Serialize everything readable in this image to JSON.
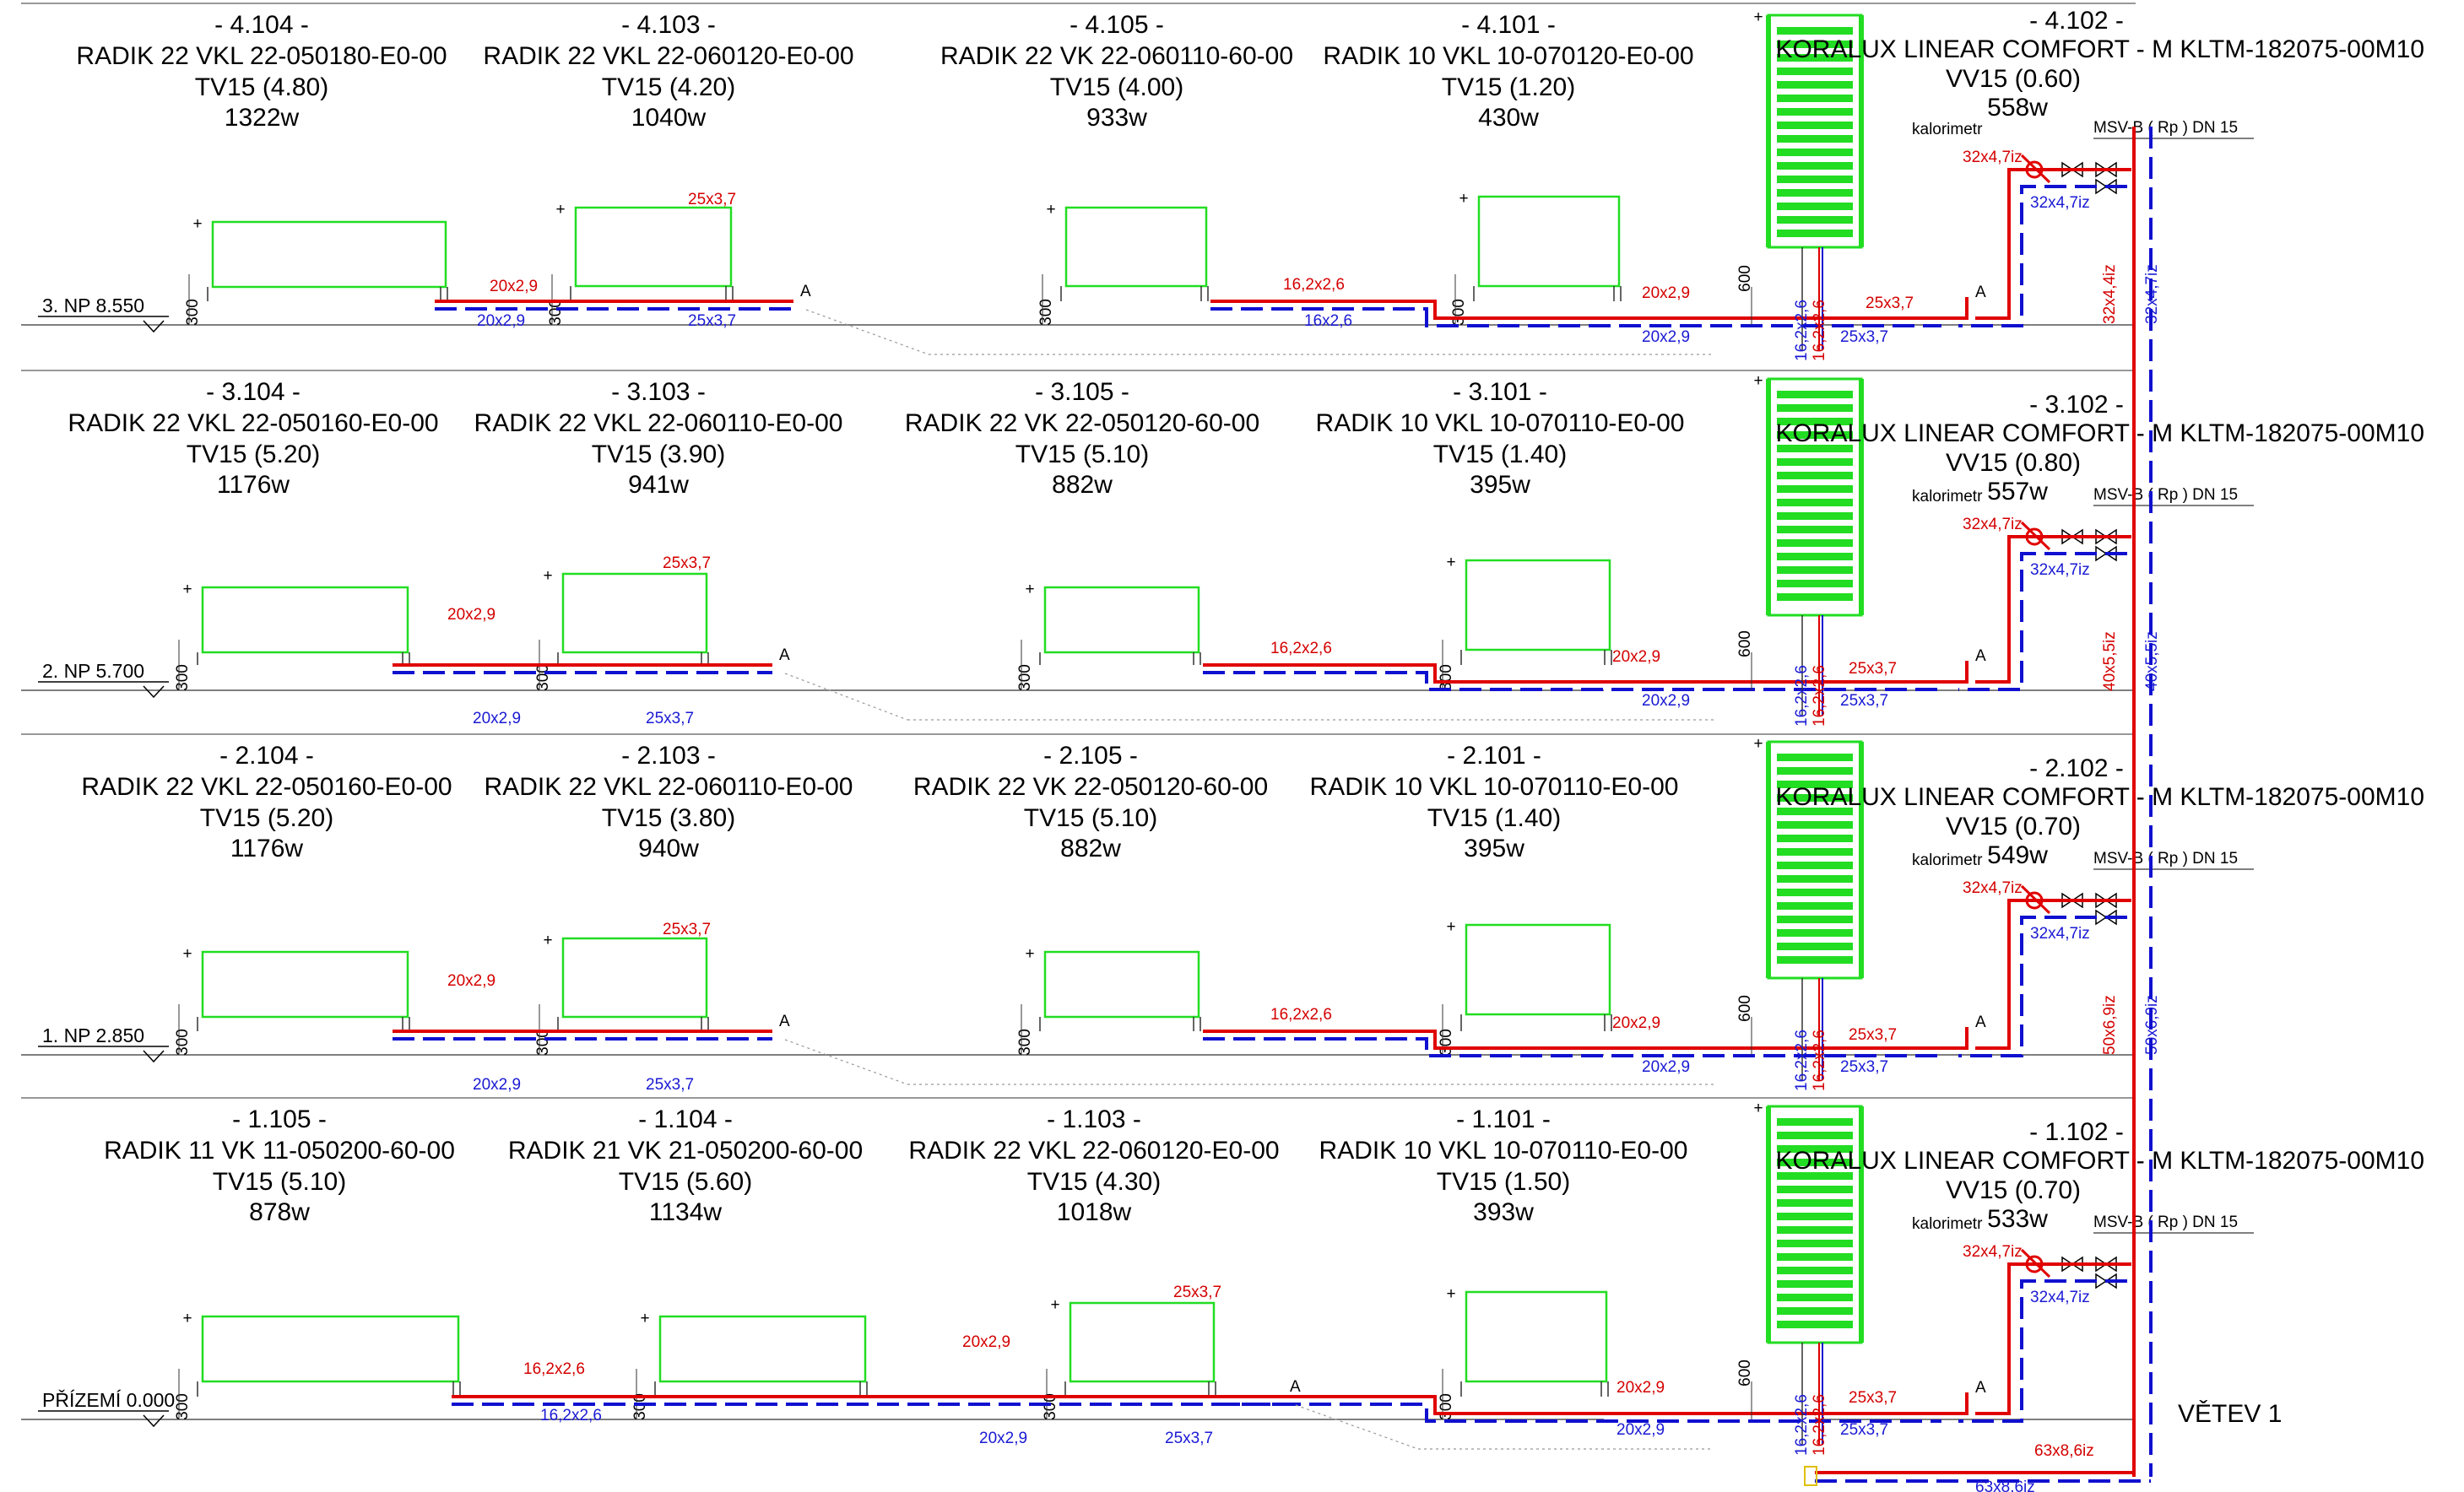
{
  "colors": {
    "supply": "#e00000",
    "return": "#1010d0",
    "radiator": "#22dd22",
    "background": "#ffffff"
  },
  "branch_label": "VĚTEV 1",
  "labels": {
    "calorimeter": "kalorimetr",
    "valve": "MSV-B ( Rp ) DN 15",
    "end_mark": "A",
    "h300": "300",
    "h600": "600"
  },
  "bottom_pipes": {
    "supply": "63x8,6iz",
    "return": "63x8,6iz"
  },
  "floors": [
    {
      "level": "3. NP 8.550",
      "riser_supply": "32x4,4iz",
      "riser_return": "32x4,7iz",
      "bath": {
        "code": "- 4.102 -",
        "model": "KORALUX LINEAR COMFORT - M KLTM-182075-00M10",
        "valve": "VV15 (0.60)",
        "power": "558w",
        "pipe_supply": "32x4,7iz",
        "pipe_return": "32x4,7iz"
      },
      "riser_small_a": "16,2x2,6",
      "riser_small_b": "16,2x2,6",
      "rooms": [
        {
          "code": "- 4.104 -",
          "model": "RADIK 22 VKL 22-050180-E0-00",
          "valve": "TV15 (4.80)",
          "power": "1322w"
        },
        {
          "code": "- 4.103 -",
          "model": "RADIK 22 VKL 22-060120-E0-00",
          "valve": "TV15 (4.20)",
          "power": "1040w"
        },
        {
          "code": "- 4.105 -",
          "model": "RADIK 22 VK 22-060110-60-00",
          "valve": "TV15 (4.00)",
          "power": "933w"
        },
        {
          "code": "- 4.101 -",
          "model": "RADIK 10 VKL 10-070120-E0-00",
          "valve": "TV15 (1.20)",
          "power": "430w"
        }
      ],
      "pipes": [
        {
          "label": "20x2,9",
          "color": "red"
        },
        {
          "label": "20x2,9",
          "color": "blue"
        },
        {
          "label": "25x3,7",
          "color": "red"
        },
        {
          "label": "25x3,7",
          "color": "blue"
        },
        {
          "label": "16,2x2,6",
          "color": "red"
        },
        {
          "label": "16x2,6",
          "color": "blue"
        },
        {
          "label": "20x2,9",
          "color": "red"
        },
        {
          "label": "20x2,9",
          "color": "blue"
        },
        {
          "label": "25x3,7",
          "color": "red"
        },
        {
          "label": "25x3,7",
          "color": "blue"
        }
      ]
    },
    {
      "level": "2. NP 5.700",
      "riser_supply": "40x5,5iz",
      "riser_return": "40x5,5iz",
      "bath": {
        "code": "- 3.102 -",
        "model": "KORALUX LINEAR COMFORT - M KLTM-182075-00M10",
        "valve": "VV15 (0.80)",
        "power": "557w",
        "pipe_supply": "32x4,7iz",
        "pipe_return": "32x4,7iz"
      },
      "riser_small_a": "16,2x2,6",
      "riser_small_b": "16,2x2,6",
      "rooms": [
        {
          "code": "- 3.104 -",
          "model": "RADIK 22 VKL 22-050160-E0-00",
          "valve": "TV15 (5.20)",
          "power": "1176w"
        },
        {
          "code": "- 3.103 -",
          "model": "RADIK 22 VKL 22-060110-E0-00",
          "valve": "TV15 (3.90)",
          "power": "941w"
        },
        {
          "code": "- 3.105 -",
          "model": "RADIK 22 VK 22-050120-60-00",
          "valve": "TV15 (5.10)",
          "power": "882w"
        },
        {
          "code": "- 3.101 -",
          "model": "RADIK 10 VKL 10-070110-E0-00",
          "valve": "TV15 (1.40)",
          "power": "395w"
        }
      ],
      "pipes": [
        {
          "label": "20x2,9",
          "color": "red"
        },
        {
          "label": "20x2,9",
          "color": "blue"
        },
        {
          "label": "25x3,7",
          "color": "red"
        },
        {
          "label": "25x3,7",
          "color": "blue"
        },
        {
          "label": "16,2x2,6",
          "color": "red"
        },
        {
          "label": "",
          "color": "blue"
        },
        {
          "label": "20x2,9",
          "color": "red"
        },
        {
          "label": "20x2,9",
          "color": "blue"
        },
        {
          "label": "25x3,7",
          "color": "red"
        },
        {
          "label": "25x3,7",
          "color": "blue"
        }
      ]
    },
    {
      "level": "1. NP 2.850",
      "riser_supply": "50x6,9iz",
      "riser_return": "50x6,9iz",
      "bath": {
        "code": "- 2.102 -",
        "model": "KORALUX LINEAR COMFORT - M KLTM-182075-00M10",
        "valve": "VV15 (0.70)",
        "power": "549w",
        "pipe_supply": "32x4,7iz",
        "pipe_return": "32x4,7iz"
      },
      "riser_small_a": "16,2x2,6",
      "riser_small_b": "16,2x2,6",
      "rooms": [
        {
          "code": "- 2.104 -",
          "model": "RADIK 22 VKL 22-050160-E0-00",
          "valve": "TV15 (5.20)",
          "power": "1176w"
        },
        {
          "code": "- 2.103 -",
          "model": "RADIK 22 VKL 22-060110-E0-00",
          "valve": "TV15 (3.80)",
          "power": "940w"
        },
        {
          "code": "- 2.105 -",
          "model": "RADIK 22 VK 22-050120-60-00",
          "valve": "TV15 (5.10)",
          "power": "882w"
        },
        {
          "code": "- 2.101 -",
          "model": "RADIK 10 VKL 10-070110-E0-00",
          "valve": "TV15 (1.40)",
          "power": "395w"
        }
      ],
      "pipes": [
        {
          "label": "20x2,9",
          "color": "red"
        },
        {
          "label": "20x2,9",
          "color": "blue"
        },
        {
          "label": "25x3,7",
          "color": "red"
        },
        {
          "label": "25x3,7",
          "color": "blue"
        },
        {
          "label": "16,2x2,6",
          "color": "red"
        },
        {
          "label": "",
          "color": "blue"
        },
        {
          "label": "20x2,9",
          "color": "red"
        },
        {
          "label": "20x2,9",
          "color": "blue"
        },
        {
          "label": "25x3,7",
          "color": "red"
        },
        {
          "label": "25x3,7",
          "color": "blue"
        }
      ]
    },
    {
      "level": "PŘÍZEMÍ 0.000",
      "riser_supply": "",
      "riser_return": "",
      "bath": {
        "code": "- 1.102 -",
        "model": "KORALUX LINEAR COMFORT - M KLTM-182075-00M10",
        "valve": "VV15 (0.70)",
        "power": "533w",
        "pipe_supply": "32x4,7iz",
        "pipe_return": "32x4,7iz"
      },
      "riser_small_a": "16,2x2,6",
      "riser_small_b": "16,2x2,6",
      "rooms": [
        {
          "code": "- 1.105 -",
          "model": "RADIK 11 VK 11-050200-60-00",
          "valve": "TV15 (5.10)",
          "power": "878w"
        },
        {
          "code": "- 1.104 -",
          "model": "RADIK 21 VK 21-050200-60-00",
          "valve": "TV15 (5.60)",
          "power": "1134w"
        },
        {
          "code": "- 1.103 -",
          "model": "RADIK 22 VKL 22-060120-E0-00",
          "valve": "TV15 (4.30)",
          "power": "1018w"
        },
        {
          "code": "- 1.101 -",
          "model": "RADIK 10 VKL 10-070110-E0-00",
          "valve": "TV15 (1.50)",
          "power": "393w"
        }
      ],
      "pipes": [
        {
          "label": "16,2x2,6",
          "color": "red"
        },
        {
          "label": "16,2x2,6",
          "color": "blue"
        },
        {
          "label": "20x2,9",
          "color": "red"
        },
        {
          "label": "20x2,9",
          "color": "blue"
        },
        {
          "label": "25x3,7",
          "color": "red"
        },
        {
          "label": "25x3,7",
          "color": "blue"
        },
        {
          "label": "",
          "color": "red"
        },
        {
          "label": "",
          "color": "blue"
        },
        {
          "label": "20x2,9",
          "color": "red"
        },
        {
          "label": "20x2,9",
          "color": "blue"
        },
        {
          "label": "25x3,7",
          "color": "red"
        },
        {
          "label": "25x3,7",
          "color": "blue"
        }
      ]
    }
  ]
}
